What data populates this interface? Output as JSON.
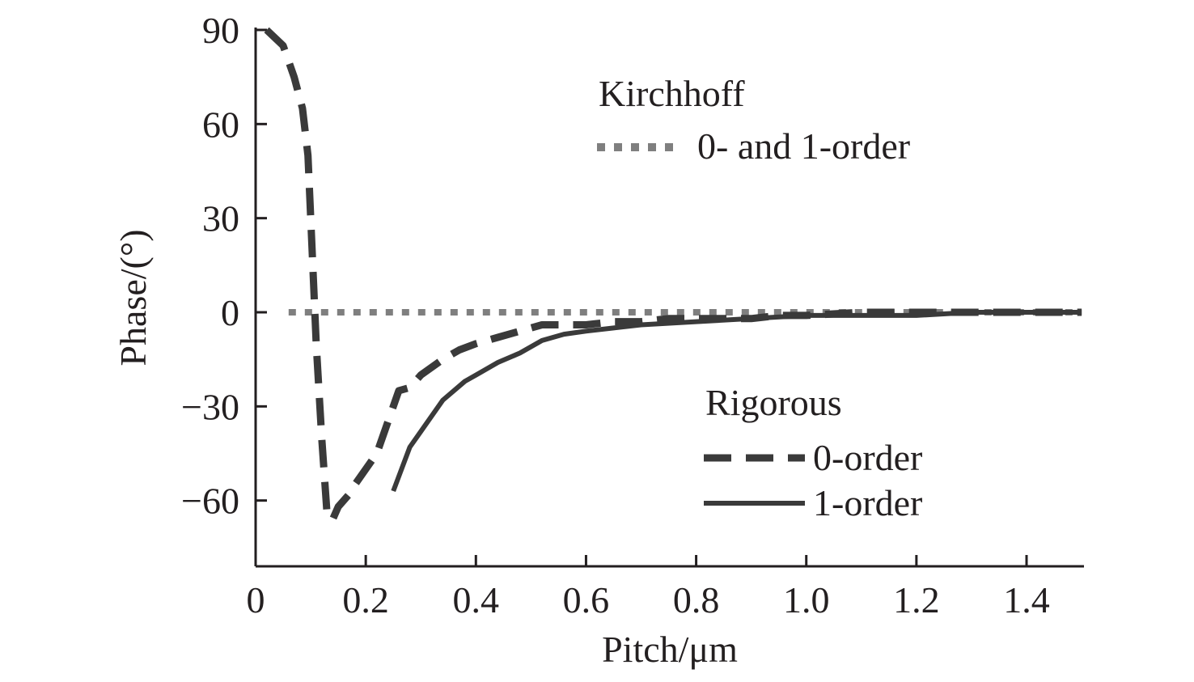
{
  "chart_data": {
    "type": "line",
    "title": "",
    "xlabel": "Pitch/μm",
    "ylabel": "Phase/(°)",
    "xlim": [
      0,
      1.5
    ],
    "ylim": [
      -80,
      90
    ],
    "x_ticks": [
      0,
      0.2,
      0.4,
      0.6,
      0.8,
      1.0,
      1.2,
      1.4
    ],
    "x_tick_labels": [
      "0",
      "0.2",
      "0.4",
      "0.6",
      "0.8",
      "1.0",
      "1.2",
      "1.4"
    ],
    "y_ticks": [
      90,
      60,
      30,
      0,
      -30,
      -60
    ],
    "y_tick_labels": [
      "90",
      "60",
      "30",
      "0",
      "−30",
      "−60"
    ],
    "grid": false,
    "legend": {
      "groups": [
        {
          "title": "Kirchhoff",
          "placement": "top-right"
        },
        {
          "title": "Rigorous",
          "placement": "bottom-right"
        }
      ]
    },
    "series": [
      {
        "name": "0- and 1-order",
        "group": "Kirchhoff",
        "style": "dotted",
        "color": "#7f7f7f",
        "x": [
          0.06,
          0.5,
          1.0,
          1.5
        ],
        "y": [
          0,
          0,
          0,
          0
        ]
      },
      {
        "name": "0-order",
        "group": "Rigorous",
        "style": "dashed",
        "color": "#3a3a3a",
        "x": [
          0.02,
          0.05,
          0.07,
          0.085,
          0.095,
          0.1,
          0.105,
          0.11,
          0.12,
          0.13,
          0.14,
          0.15,
          0.17,
          0.18,
          0.2,
          0.22,
          0.24,
          0.26,
          0.28,
          0.3,
          0.34,
          0.37,
          0.4,
          0.44,
          0.48,
          0.52,
          0.56,
          0.6,
          0.65,
          0.7,
          0.75,
          0.8,
          0.85,
          0.9,
          0.95,
          1.0,
          1.1,
          1.2,
          1.3,
          1.4,
          1.5
        ],
        "y": [
          90,
          85,
          75,
          65,
          50,
          30,
          10,
          -10,
          -40,
          -65,
          -66,
          -62,
          -58,
          -55,
          -50,
          -45,
          -35,
          -25,
          -24,
          -20,
          -15,
          -12,
          -10,
          -8,
          -6,
          -4,
          -4,
          -4,
          -3,
          -3,
          -2,
          -2,
          -2,
          -2,
          -1,
          -1,
          0,
          0,
          0,
          0,
          0
        ]
      },
      {
        "name": "1-order",
        "group": "Rigorous",
        "style": "solid",
        "color": "#3a3a3a",
        "x": [
          0.25,
          0.28,
          0.3,
          0.34,
          0.38,
          0.4,
          0.44,
          0.48,
          0.52,
          0.56,
          0.6,
          0.65,
          0.7,
          0.8,
          0.9,
          1.0,
          1.1,
          1.2,
          1.3,
          1.4,
          1.5
        ],
        "y": [
          -57,
          -43,
          -38,
          -28,
          -22,
          -20,
          -16,
          -13,
          -9,
          -7,
          -6,
          -5,
          -4,
          -3,
          -2,
          -1,
          -1,
          -1,
          0,
          0,
          0
        ]
      }
    ]
  }
}
